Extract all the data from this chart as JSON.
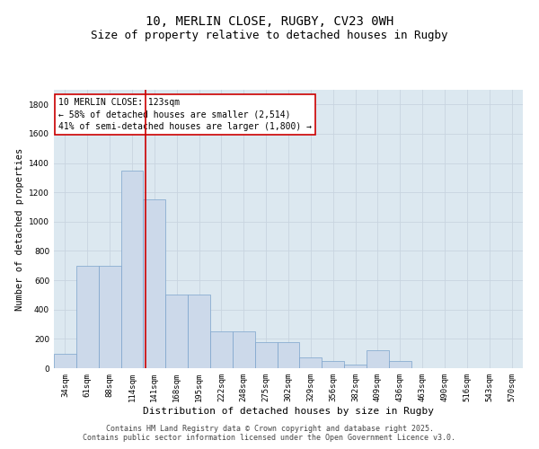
{
  "title": "10, MERLIN CLOSE, RUGBY, CV23 0WH",
  "subtitle": "Size of property relative to detached houses in Rugby",
  "xlabel": "Distribution of detached houses by size in Rugby",
  "ylabel": "Number of detached properties",
  "bar_color": "#ccd9ea",
  "bar_edge_color": "#7ba3cc",
  "bins": [
    "34sqm",
    "61sqm",
    "88sqm",
    "114sqm",
    "141sqm",
    "168sqm",
    "195sqm",
    "222sqm",
    "248sqm",
    "275sqm",
    "302sqm",
    "329sqm",
    "356sqm",
    "382sqm",
    "409sqm",
    "436sqm",
    "463sqm",
    "490sqm",
    "516sqm",
    "543sqm",
    "570sqm"
  ],
  "values": [
    100,
    700,
    700,
    1350,
    1150,
    500,
    500,
    250,
    250,
    175,
    175,
    75,
    50,
    25,
    125,
    50,
    0,
    0,
    0,
    0,
    0
  ],
  "vline_x": 3.6,
  "vline_color": "#cc0000",
  "annotation_text": "10 MERLIN CLOSE: 123sqm\n← 58% of detached houses are smaller (2,514)\n41% of semi-detached houses are larger (1,800) →",
  "annotation_box_color": "#ffffff",
  "annotation_box_edge": "#cc0000",
  "ylim": [
    0,
    1900
  ],
  "yticks": [
    0,
    200,
    400,
    600,
    800,
    1000,
    1200,
    1400,
    1600,
    1800
  ],
  "grid_color": "#c8d4e0",
  "background_color": "#dce8f0",
  "footer_text": "Contains HM Land Registry data © Crown copyright and database right 2025.\nContains public sector information licensed under the Open Government Licence v3.0.",
  "title_fontsize": 10,
  "subtitle_fontsize": 9,
  "xlabel_fontsize": 8,
  "ylabel_fontsize": 7.5,
  "tick_fontsize": 6.5,
  "annotation_fontsize": 7,
  "footer_fontsize": 6
}
